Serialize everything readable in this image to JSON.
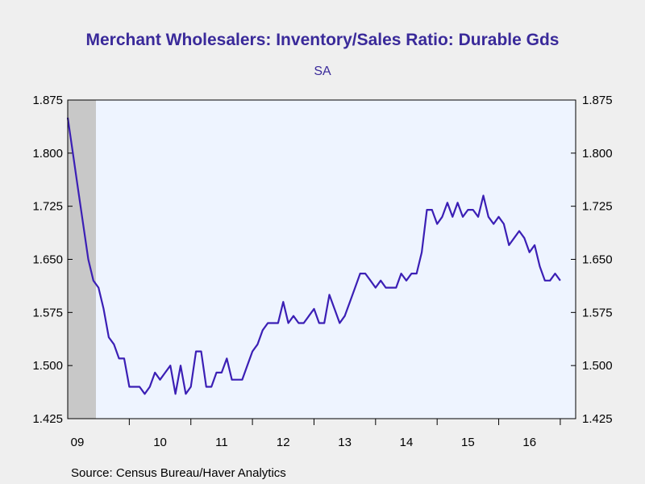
{
  "chart_data": {
    "type": "line",
    "title": "Merchant Wholesalers: Inventory/Sales Ratio: Durable Gds",
    "subtitle": "SA",
    "source": "Source:  Census Bureau/Haver Analytics",
    "ylim": [
      1.425,
      1.875
    ],
    "yticks": [
      "1.875",
      "1.800",
      "1.725",
      "1.650",
      "1.575",
      "1.500",
      "1.425"
    ],
    "xlabels": [
      "09",
      "10",
      "11",
      "12",
      "13",
      "14",
      "15",
      "16"
    ],
    "recession_shading": {
      "start": "2009-01",
      "end": "2009-06"
    },
    "colors": {
      "line": "#3b1fb5",
      "plot_bg": "#eef4ff",
      "recession": "#c8c8c8"
    },
    "series": [
      {
        "start": "2009-01",
        "frequency": "monthly",
        "values": [
          1.85,
          1.8,
          1.75,
          1.7,
          1.65,
          1.62,
          1.61,
          1.58,
          1.54,
          1.53,
          1.51,
          1.51,
          1.47,
          1.47,
          1.47,
          1.46,
          1.47,
          1.49,
          1.48,
          1.49,
          1.5,
          1.46,
          1.5,
          1.46,
          1.47,
          1.52,
          1.52,
          1.47,
          1.47,
          1.49,
          1.49,
          1.51,
          1.48,
          1.48,
          1.48,
          1.5,
          1.52,
          1.53,
          1.55,
          1.56,
          1.56,
          1.56,
          1.59,
          1.56,
          1.57,
          1.56,
          1.56,
          1.57,
          1.58,
          1.56,
          1.56,
          1.6,
          1.58,
          1.56,
          1.57,
          1.59,
          1.61,
          1.63,
          1.63,
          1.62,
          1.61,
          1.62,
          1.61,
          1.61,
          1.61,
          1.63,
          1.62,
          1.63,
          1.63,
          1.66,
          1.72,
          1.72,
          1.7,
          1.71,
          1.73,
          1.71,
          1.73,
          1.71,
          1.72,
          1.72,
          1.71,
          1.74,
          1.71,
          1.7,
          1.71,
          1.7,
          1.67,
          1.68,
          1.69,
          1.68,
          1.66,
          1.67,
          1.64,
          1.62,
          1.62,
          1.63,
          1.62
        ]
      }
    ]
  }
}
